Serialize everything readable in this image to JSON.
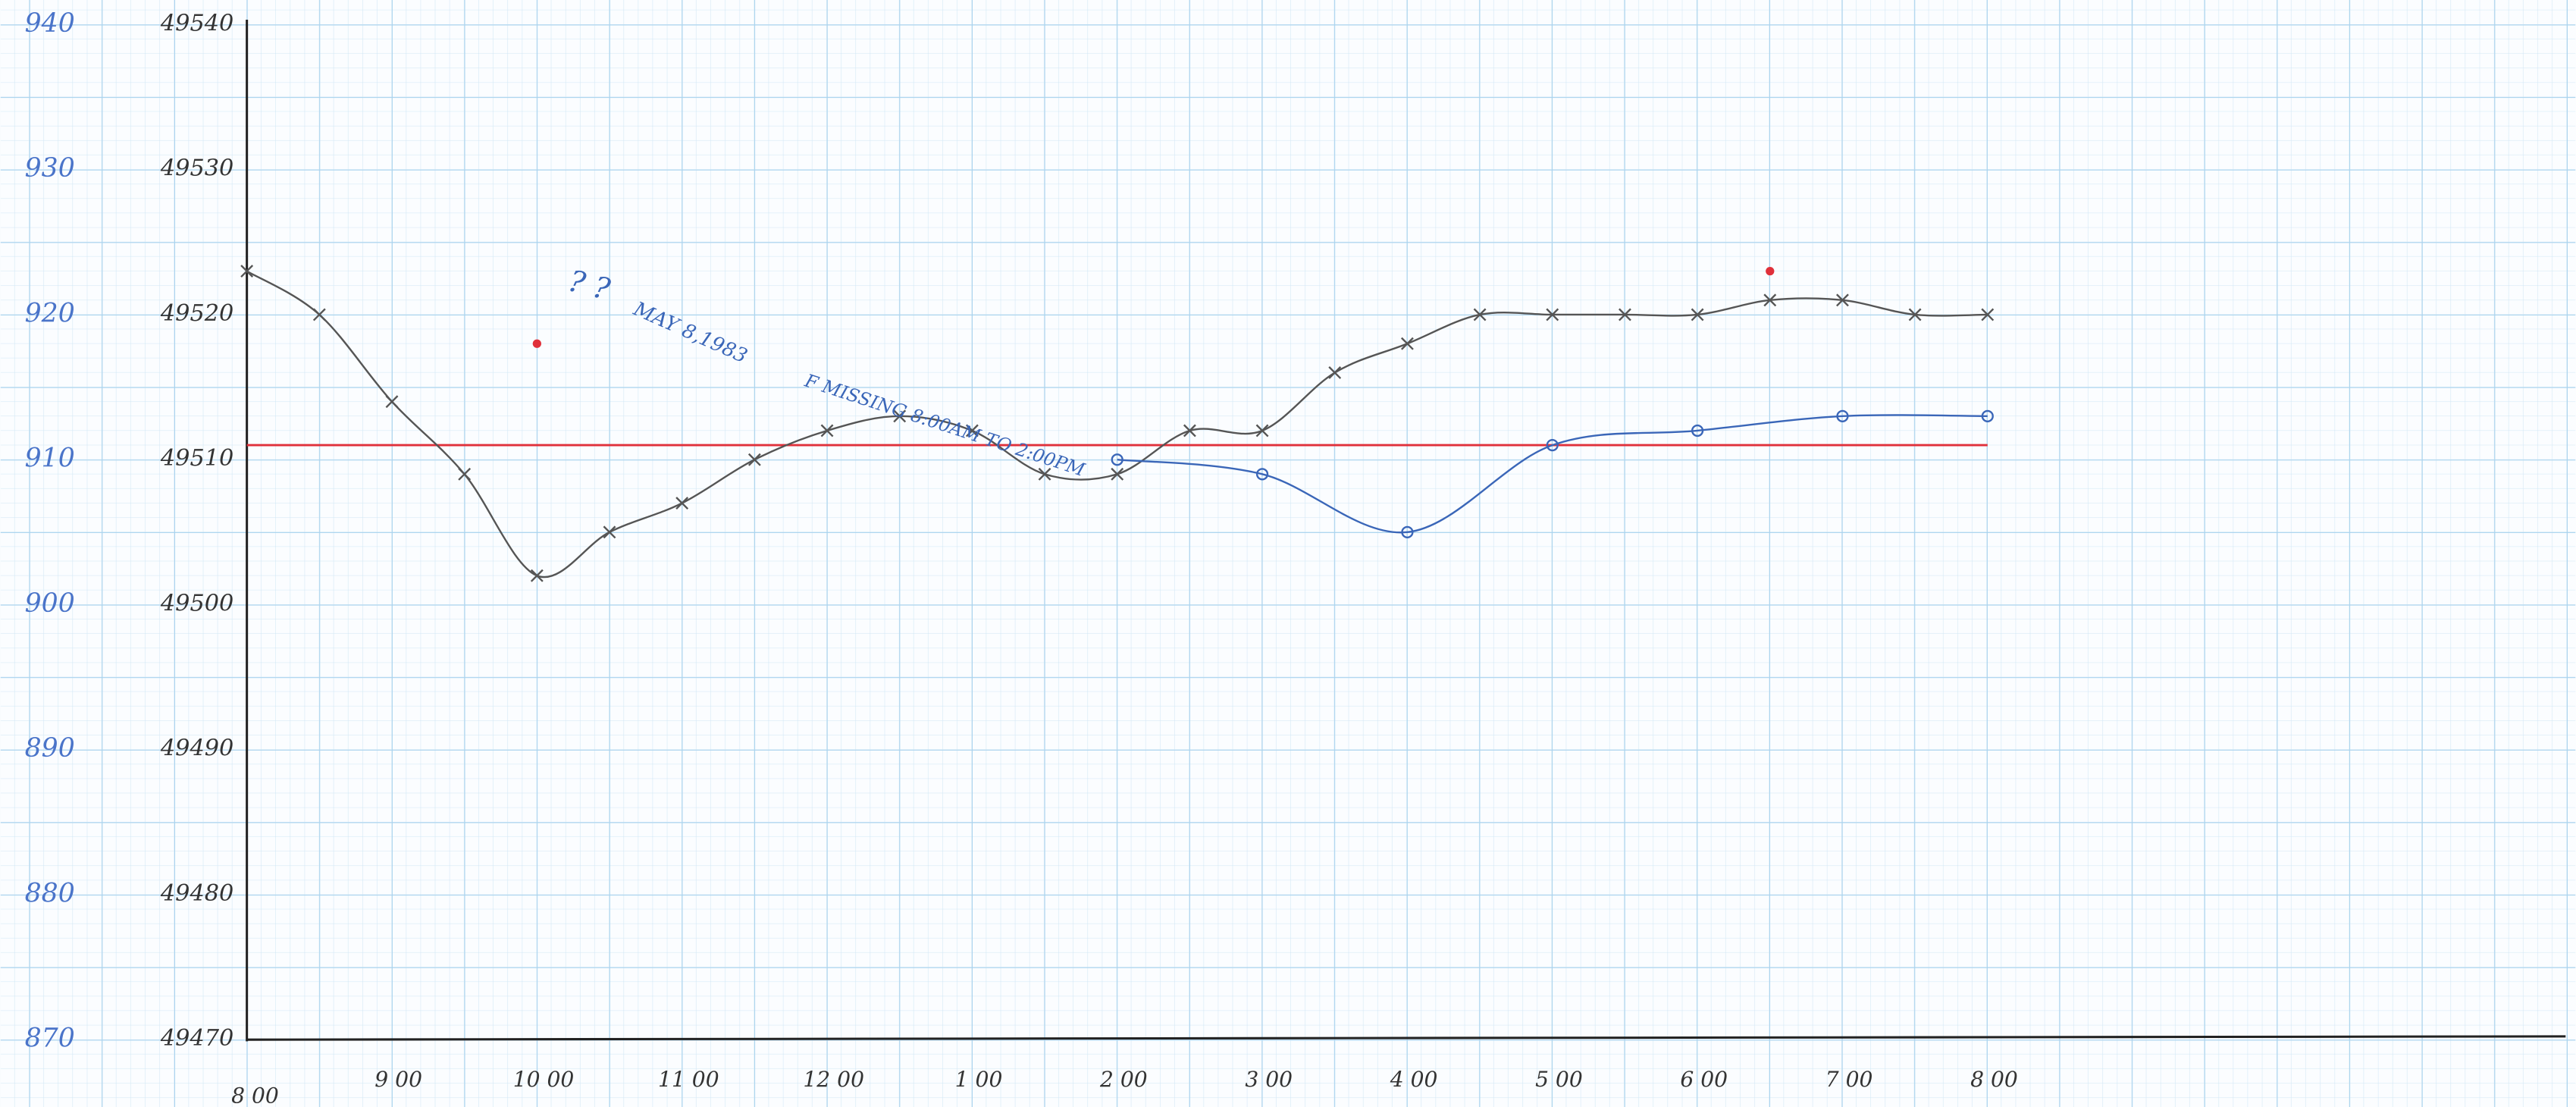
{
  "chart_data": {
    "type": "line",
    "xlim": [
      0,
      12
    ],
    "xticks": [
      {
        "value": 0,
        "label": "8 00"
      },
      {
        "value": 1,
        "label": "9 00"
      },
      {
        "value": 2,
        "label": "10 00"
      },
      {
        "value": 3,
        "label": "11 00"
      },
      {
        "value": 4,
        "label": "12 00"
      },
      {
        "value": 5,
        "label": "1 00"
      },
      {
        "value": 6,
        "label": "2 00"
      },
      {
        "value": 7,
        "label": "3 00"
      },
      {
        "value": 8,
        "label": "4 00"
      },
      {
        "value": 9,
        "label": "5 00"
      },
      {
        "value": 10,
        "label": "6 00"
      },
      {
        "value": 11,
        "label": "7 00"
      },
      {
        "value": 12,
        "label": "8 00"
      }
    ],
    "ylim": [
      49470,
      49540
    ],
    "yticks": [
      49470,
      49480,
      49490,
      49500,
      49510,
      49520,
      49530,
      49540
    ],
    "y2lim": [
      870,
      940
    ],
    "y2ticks": [
      870,
      880,
      890,
      900,
      910,
      920,
      930,
      940
    ],
    "series": [
      {
        "color": "#555555",
        "marker": "x",
        "x": [
          0,
          0.5,
          1,
          1.5,
          2,
          2.5,
          3,
          3.5,
          4,
          4.5,
          5,
          5.5,
          6,
          6.5,
          7,
          7.5,
          8,
          8.5,
          9,
          9.5,
          10,
          10.5,
          11,
          11.5,
          12
        ],
        "values": [
          49523,
          49520,
          49514,
          49509,
          49502,
          49505,
          49507,
          49510,
          49512,
          49513,
          49512,
          49509,
          49509,
          49512,
          49512,
          49516,
          49518,
          49520,
          49520,
          49520,
          49520,
          49521,
          49521,
          49520,
          49520
        ]
      },
      {
        "color": "#3a66b8",
        "marker": "o",
        "axis": "y2",
        "x": [
          6,
          7,
          8,
          9,
          10,
          11,
          12
        ],
        "values": [
          910,
          909,
          905,
          911,
          912,
          913,
          913
        ]
      }
    ],
    "reference_line": {
      "value": 49511,
      "color": "#e0303a"
    },
    "red_points": {
      "color": "#e0303a",
      "x": [
        2,
        10.5
      ],
      "values": [
        49518,
        49523
      ]
    },
    "annotations": [
      "? ?",
      "MAY 8,1983",
      "F MISSING 8:00AM TO 2:00PM"
    ]
  }
}
